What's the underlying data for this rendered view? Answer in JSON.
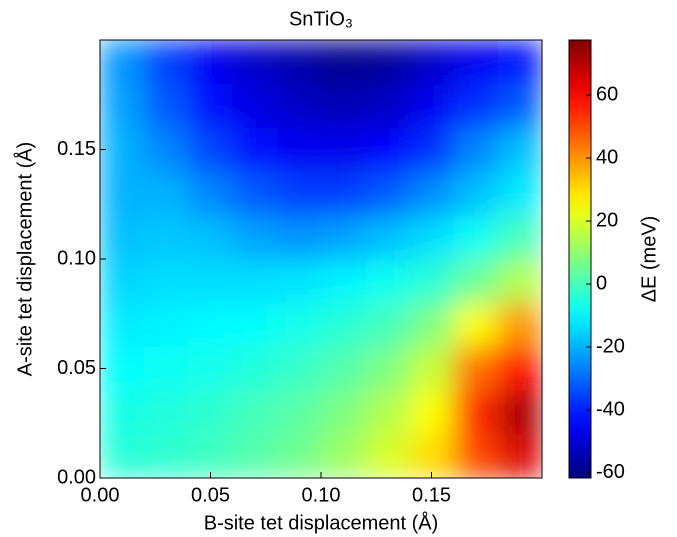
{
  "chart_data": {
    "type": "heatmap",
    "title": "SnTiO₃",
    "x_label": "B-site tet displacement (Å)",
    "y_label": "A-site tet displacement (Å)",
    "colorbar_label": "ΔE (meV)",
    "colormap": "jet",
    "x": [
      0.01,
      0.03,
      0.05,
      0.07,
      0.09,
      0.11,
      0.13,
      0.15,
      0.17,
      0.19
    ],
    "y": [
      0.01,
      0.03,
      0.05,
      0.07,
      0.09,
      0.11,
      0.13,
      0.15,
      0.17,
      0.19
    ],
    "values": [
      [
        -4,
        -3,
        -1,
        2,
        6,
        12,
        20,
        30,
        50,
        65
      ],
      [
        -6,
        -5,
        -3,
        0,
        3,
        8,
        15,
        25,
        55,
        72
      ],
      [
        -9,
        -8,
        -7,
        -5,
        -2,
        2,
        8,
        18,
        45,
        60
      ],
      [
        -12,
        -11,
        -10,
        -9,
        -7,
        -4,
        0,
        8,
        25,
        40
      ],
      [
        -15,
        -14,
        -14,
        -14,
        -13,
        -11,
        -8,
        -4,
        5,
        15
      ],
      [
        -18,
        -17,
        -18,
        -22,
        -24,
        -22,
        -18,
        -14,
        -8,
        0
      ],
      [
        -20,
        -20,
        -26,
        -32,
        -36,
        -36,
        -32,
        -25,
        -18,
        -12
      ],
      [
        -20,
        -26,
        -35,
        -42,
        -46,
        -47,
        -44,
        -38,
        -26,
        -18
      ],
      [
        -22,
        -32,
        -42,
        -48,
        -52,
        -54,
        -52,
        -46,
        -38,
        -32
      ],
      [
        -24,
        -36,
        -46,
        -52,
        -56,
        -60,
        -58,
        -52,
        -46,
        -42
      ]
    ],
    "xlim": [
      0,
      0.2
    ],
    "ylim": [
      0,
      0.2
    ],
    "xticks": [
      {
        "value": 0,
        "label": "0.00"
      },
      {
        "value": 0.05,
        "label": "0.05"
      },
      {
        "value": 0.1,
        "label": "0.10"
      },
      {
        "value": 0.15,
        "label": "0.15"
      }
    ],
    "yticks": [
      {
        "value": 0,
        "label": "0.00"
      },
      {
        "value": 0.05,
        "label": "0.05"
      },
      {
        "value": 0.1,
        "label": "0.10"
      },
      {
        "value": 0.15,
        "label": "0.15"
      }
    ],
    "zlim": [
      -61.6,
      77.5
    ],
    "zticks": [
      -60,
      -40,
      -20,
      0,
      20,
      40,
      60
    ]
  }
}
